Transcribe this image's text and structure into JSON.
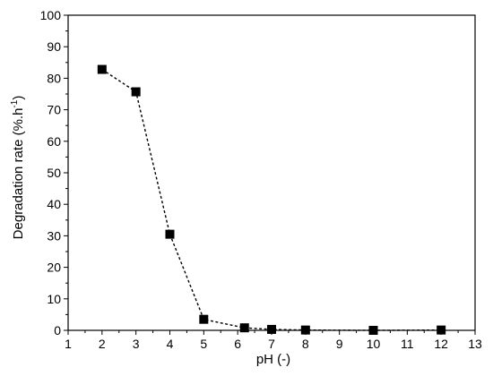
{
  "chart_data": {
    "type": "line",
    "xlabel": "pH (-)",
    "ylabel_main": "Degradation rate (%.h",
    "ylabel_sup": "-1",
    "ylabel_close": ")",
    "xlim": [
      1,
      13
    ],
    "ylim": [
      0,
      100
    ],
    "x_ticks": [
      1,
      2,
      3,
      4,
      5,
      6,
      7,
      8,
      9,
      10,
      11,
      12,
      13
    ],
    "y_ticks": [
      0,
      10,
      20,
      30,
      40,
      50,
      60,
      70,
      80,
      90,
      100
    ],
    "grid": false,
    "series": [
      {
        "marker": "square",
        "line_style": "dashed",
        "color": "#000000",
        "points": [
          {
            "x": 2,
            "y": 82.8
          },
          {
            "x": 3,
            "y": 75.7
          },
          {
            "x": 4,
            "y": 30.5
          },
          {
            "x": 5,
            "y": 3.5
          },
          {
            "x": 6.2,
            "y": 0.8
          },
          {
            "x": 7,
            "y": 0.3
          },
          {
            "x": 8,
            "y": 0.1
          },
          {
            "x": 10,
            "y": 0.0
          },
          {
            "x": 12,
            "y": 0.1
          }
        ]
      }
    ]
  }
}
